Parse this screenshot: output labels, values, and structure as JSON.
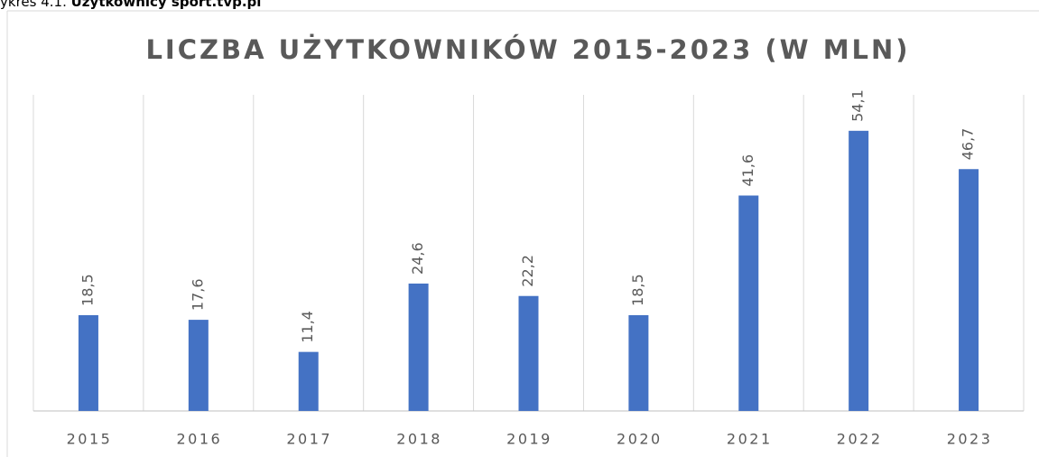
{
  "caption": {
    "prefix": "ykres 4.1.",
    "title": "Użytkownicy sport.tvp.pl"
  },
  "chart_data": {
    "type": "bar",
    "title": "LICZBA UŻYTKOWNIKÓW 2015-2023 (W MLN)",
    "categories": [
      "2015",
      "2016",
      "2017",
      "2018",
      "2019",
      "2020",
      "2021",
      "2022",
      "2023"
    ],
    "values": [
      18.5,
      17.6,
      11.4,
      24.6,
      22.2,
      18.5,
      41.6,
      54.1,
      46.7
    ],
    "value_labels": [
      "18,5",
      "17,6",
      "11,4",
      "24,6",
      "22,2",
      "18,5",
      "41,6",
      "54,1",
      "46,7"
    ],
    "color": "#4472c4",
    "ylim": [
      0,
      60
    ],
    "grid": true
  }
}
